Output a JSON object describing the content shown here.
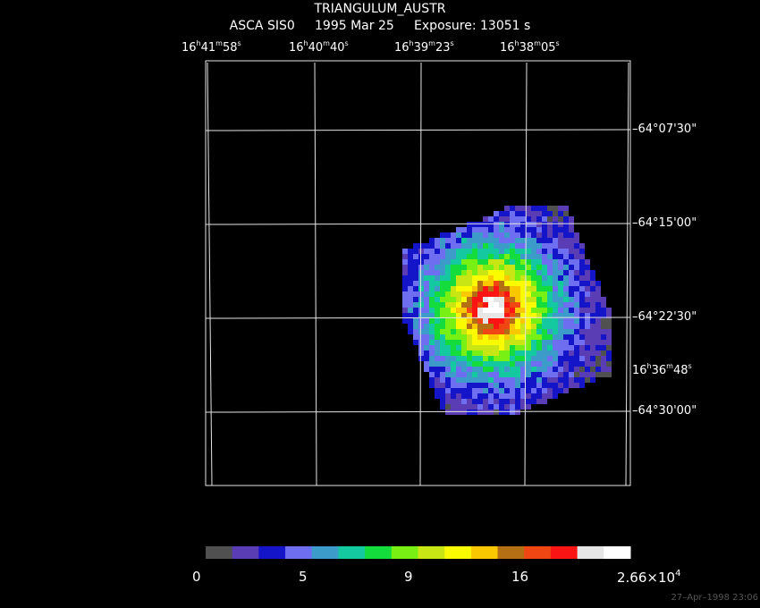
{
  "header": {
    "object": "TRIANGULUM_AUSTR",
    "instrument": "ASCA SIS0",
    "date": "1995 Mar 25",
    "exposure": "Exposure: 13051 s"
  },
  "ra_labels": [
    {
      "h": "16",
      "m": "41",
      "s": "58"
    },
    {
      "h": "16",
      "m": "40",
      "s": "40"
    },
    {
      "h": "16",
      "m": "39",
      "s": "23"
    },
    {
      "h": "16",
      "m": "38",
      "s": "05"
    },
    {
      "h": "16",
      "m": "36",
      "s": "48"
    }
  ],
  "dec_labels": [
    "–64°07'30\"",
    "–64°15'00\"",
    "–64°22'30\"",
    "–64°30'00\""
  ],
  "colorbar": {
    "labels": [
      "0",
      "5",
      "9",
      "16",
      "2.66×10"
    ],
    "max_exponent": "4",
    "colors": [
      "#505050",
      "#5a3cb4",
      "#1414c8",
      "#6e6ef0",
      "#3c9bc8",
      "#14c8a0",
      "#14dc3c",
      "#78f014",
      "#c8e614",
      "#fafa00",
      "#fac800",
      "#b46e14",
      "#f04614",
      "#fa1414",
      "#e6e6e6",
      "#ffffff"
    ]
  },
  "timestamp": "27–Apr–1998 23:06"
}
